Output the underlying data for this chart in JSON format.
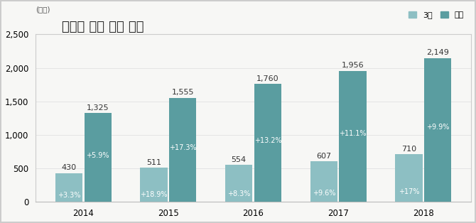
{
  "title": "국제선 여객 실적 추이",
  "ylabel": "(만명)",
  "years": [
    "2014",
    "2015",
    "2016",
    "2017",
    "2018"
  ],
  "march_values": [
    430,
    511,
    554,
    607,
    710
  ],
  "cumulative_values": [
    1325,
    1555,
    1760,
    1956,
    2149
  ],
  "march_labels": [
    "430",
    "511",
    "554",
    "607",
    "710"
  ],
  "cumulative_labels": [
    "1,325",
    "1,555",
    "1,760",
    "1,956",
    "2,149"
  ],
  "march_pct": [
    "+3.3%",
    "+18.9%",
    "+8.3%",
    "+9.6%",
    "+17%"
  ],
  "cumulative_pct": [
    "+5.9%",
    "+17.3%",
    "+13.2%",
    "+11.1%",
    "+9.9%"
  ],
  "march_color": "#8dbfc3",
  "cumulative_color": "#5a9da0",
  "ylim": [
    0,
    2500
  ],
  "yticks": [
    0,
    500,
    1000,
    1500,
    2000,
    2500
  ],
  "legend_march": "3월",
  "legend_cumulative": "누적",
  "bar_width": 0.32,
  "background_color": "#f7f7f5",
  "plot_area_color": "#f7f7f5",
  "border_color": "#cccccc",
  "title_fontsize": 13,
  "tick_fontsize": 8.5,
  "label_fontsize": 8,
  "pct_fontsize": 7
}
